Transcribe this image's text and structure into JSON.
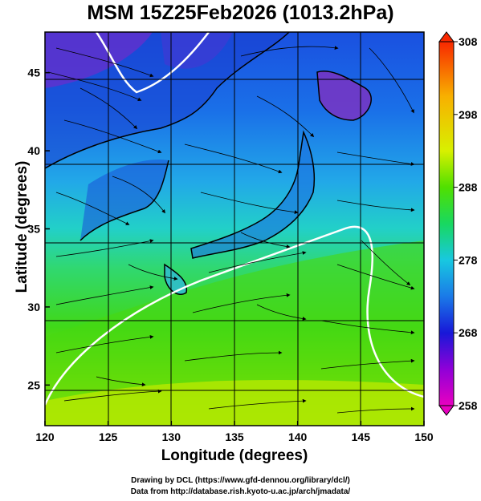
{
  "title": "MSM 15Z25Feb2026 (1013.2hPa)",
  "xlabel": "Longitude (degrees)",
  "ylabel": "Latitude  (degrees)",
  "credits": [
    "Drawing by DCL (https://www.gfd-dennou.org/library/dcl/)",
    "Data from http://database.rish.kyoto-u.ac.jp/arch/jmadata/"
  ],
  "chart_data": {
    "type": "heatmap",
    "xlim": [
      120,
      150
    ],
    "ylim": [
      22.4,
      47.6
    ],
    "x_ticks": [
      120,
      125,
      130,
      135,
      140,
      145,
      150
    ],
    "y_ticks": [
      25,
      30,
      35,
      40,
      45
    ],
    "grid": true,
    "colorbar": {
      "min": 258,
      "max": 308,
      "ticks": [
        258,
        268,
        278,
        288,
        298,
        308
      ],
      "colors": [
        "#e800c0",
        "#9000d8",
        "#1818d8",
        "#1a7ae8",
        "#18c8e0",
        "#18d860",
        "#50e000",
        "#d8f000",
        "#f8b000",
        "#f82800"
      ]
    },
    "streamlines": "wind vectors at 1013.2hPa",
    "contour": "white line (273 K)"
  }
}
